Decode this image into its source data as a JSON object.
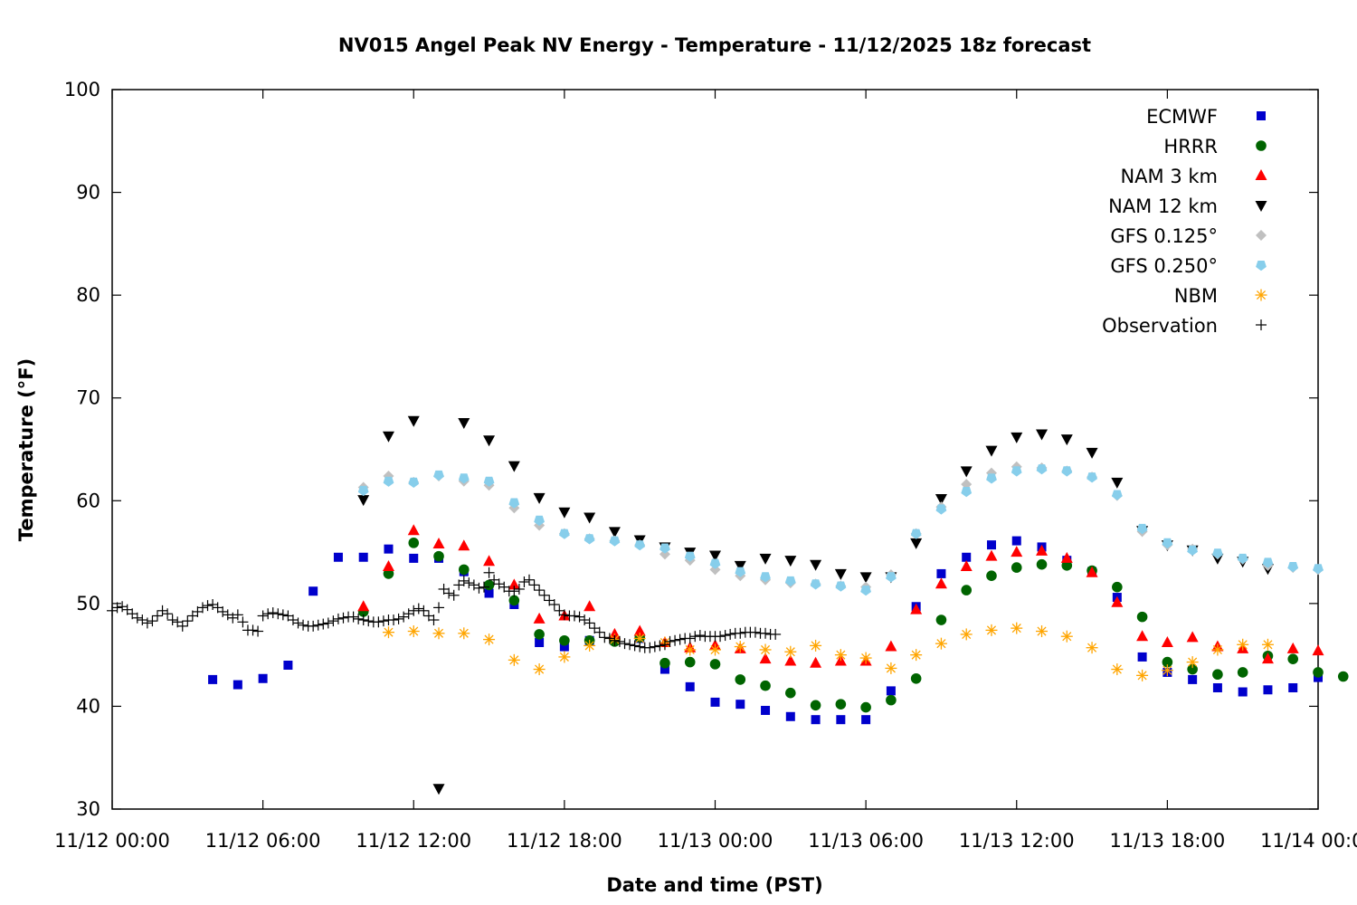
{
  "chart_data": {
    "type": "scatter",
    "title": "NV015 Angel Peak NV Energy - Temperature - 11/12/2025 18z forecast",
    "xlabel": "Date and time (PST)",
    "ylabel": "Temperature (°F)",
    "ylim": [
      30,
      100
    ],
    "yticks": [
      30,
      40,
      50,
      60,
      70,
      80,
      90,
      100
    ],
    "xlim_hours": [
      0,
      48
    ],
    "xticks": [
      {
        "hour": 0,
        "label": "11/12 00:00"
      },
      {
        "hour": 6,
        "label": "11/12 06:00"
      },
      {
        "hour": 12,
        "label": "11/12 12:00"
      },
      {
        "hour": 18,
        "label": "11/12 18:00"
      },
      {
        "hour": 24,
        "label": "11/13 00:00"
      },
      {
        "hour": 30,
        "label": "11/13 06:00"
      },
      {
        "hour": 36,
        "label": "11/13 12:00"
      },
      {
        "hour": 42,
        "label": "11/13 18:00"
      },
      {
        "hour": 48,
        "label": "11/14 00:00"
      }
    ],
    "x_unit": "hours since 11/12 00:00 PST",
    "grid": false,
    "legend_position": "top-right",
    "series": [
      {
        "name": "ECMWF",
        "marker": "square",
        "color": "#0000cc",
        "start_hour": 4,
        "values": [
          42.6,
          42.1,
          42.7,
          44.0,
          51.2,
          54.5,
          54.5,
          55.3,
          54.4,
          54.4,
          53.1,
          51.0,
          49.9,
          46.2,
          45.8,
          46.4,
          46.4,
          46.6,
          43.6,
          41.9,
          40.4,
          40.2,
          39.6,
          39.0,
          38.7,
          38.7,
          38.7,
          41.5,
          49.7,
          52.9,
          54.5,
          55.7,
          56.1,
          55.5,
          54.2,
          53.1,
          50.6,
          44.8,
          43.3,
          42.6,
          41.8,
          41.4,
          41.6,
          41.8,
          42.8
        ]
      },
      {
        "name": "HRRR",
        "marker": "circle",
        "color": "#006400",
        "start_hour": 10,
        "values": [
          49.2,
          52.9,
          55.9,
          54.6,
          53.3,
          51.8,
          50.3,
          47.0,
          46.4,
          46.4,
          46.3,
          46.7,
          44.2,
          44.3,
          44.1,
          42.6,
          42.0,
          41.3,
          40.1,
          40.2,
          39.9,
          40.6,
          42.7,
          48.4,
          51.3,
          52.7,
          53.5,
          53.8,
          53.7,
          53.2,
          51.6,
          48.7,
          44.3,
          43.6,
          43.1,
          43.3,
          44.9,
          44.6,
          43.3,
          42.9
        ]
      },
      {
        "name": "NAM 3 km",
        "marker": "triangle-up",
        "color": "#ff0000",
        "start_hour": 10,
        "values": [
          49.7,
          53.6,
          57.1,
          55.8,
          55.6,
          54.1,
          51.8,
          48.5,
          48.8,
          49.7,
          47.0,
          47.3,
          46.2,
          45.7,
          45.9,
          45.6,
          44.6,
          44.4,
          44.2,
          44.4,
          44.4,
          45.8,
          49.4,
          51.9,
          53.6,
          54.6,
          55.0,
          55.1,
          54.4,
          53.0,
          50.1,
          46.8,
          46.2,
          46.7,
          45.8,
          45.6,
          44.6,
          45.6,
          45.4
        ]
      },
      {
        "name": "NAM 12 km",
        "marker": "triangle-down",
        "color": "#000000",
        "start_hour": 10,
        "values": [
          60.1,
          66.3,
          67.8,
          32.0,
          67.6,
          65.9,
          63.4,
          60.3,
          58.9,
          58.4,
          57.0,
          56.2,
          55.5,
          55.0,
          54.7,
          53.7,
          54.4,
          54.2,
          53.8,
          52.9,
          52.6,
          52.6,
          55.9,
          60.2,
          62.9,
          64.9,
          66.2,
          66.5,
          66.0,
          64.7,
          61.8,
          57.1,
          55.7,
          55.2,
          54.4,
          54.1,
          53.4
        ]
      },
      {
        "name": "GFS 0.125°",
        "marker": "diamond",
        "color": "#c0c0c0",
        "start_hour": 10,
        "values": [
          61.3,
          62.4,
          61.8,
          62.4,
          61.9,
          61.5,
          59.3,
          57.6,
          56.8,
          56.3,
          56.1,
          55.7,
          54.8,
          54.2,
          53.3,
          52.7,
          52.3,
          52.0,
          51.9,
          51.7,
          51.6,
          52.8,
          56.8,
          59.4,
          61.6,
          62.7,
          63.3,
          63.2,
          62.9,
          62.3,
          60.5,
          57.0,
          55.7,
          55.3,
          54.8,
          54.3,
          53.7,
          53.5,
          53.3
        ]
      },
      {
        "name": "GFS 0.250°",
        "marker": "pentagon",
        "color": "#87ceeb",
        "start_hour": 10,
        "values": [
          61.0,
          61.9,
          61.8,
          62.5,
          62.2,
          61.9,
          59.8,
          58.1,
          56.8,
          56.3,
          56.1,
          55.7,
          55.4,
          54.6,
          53.9,
          53.1,
          52.6,
          52.2,
          51.9,
          51.7,
          51.3,
          52.6,
          56.8,
          59.2,
          60.9,
          62.2,
          62.9,
          63.1,
          62.9,
          62.3,
          60.6,
          57.3,
          55.9,
          55.2,
          54.9,
          54.4,
          54.0,
          53.6,
          53.4
        ]
      },
      {
        "name": "NBM",
        "marker": "star",
        "color": "#ffa500",
        "start_hour": 11,
        "values": [
          47.2,
          47.3,
          47.1,
          47.1,
          46.5,
          44.5,
          43.6,
          44.8,
          45.9,
          46.5,
          46.6,
          46.2,
          45.5,
          45.5,
          45.8,
          45.5,
          45.3,
          45.9,
          45.0,
          44.7,
          43.7,
          45.0,
          46.1,
          47.0,
          47.4,
          47.6,
          47.3,
          46.8,
          45.7,
          43.6,
          43.0,
          43.5,
          44.3,
          45.5,
          46.0,
          46.0
        ]
      },
      {
        "name": "Observation",
        "marker": "plus",
        "color": "#000000",
        "start_hour": 0,
        "step_hours": 0.2,
        "values": [
          49.3,
          49.6,
          49.7,
          49.4,
          49.0,
          48.6,
          48.4,
          48.1,
          48.3,
          48.8,
          49.3,
          49.0,
          48.4,
          48.2,
          47.8,
          48.3,
          48.8,
          49.2,
          49.6,
          49.8,
          49.9,
          49.6,
          49.2,
          48.9,
          48.6,
          48.9,
          48.2,
          47.4,
          47.4,
          47.3,
          48.8,
          49.0,
          49.1,
          49.0,
          48.9,
          48.8,
          48.4,
          48.1,
          47.9,
          47.8,
          47.8,
          47.9,
          48.0,
          48.1,
          48.3,
          48.5,
          48.6,
          48.7,
          48.7,
          48.5,
          48.4,
          48.3,
          48.2,
          48.2,
          48.3,
          48.4,
          48.4,
          48.5,
          48.7,
          49.0,
          49.3,
          49.5,
          49.3,
          48.8,
          48.4,
          49.6,
          51.4,
          51.0,
          50.8,
          51.8,
          52.2,
          52.0,
          51.8,
          51.5,
          51.6,
          53.0,
          52.3,
          51.9,
          51.6,
          51.2,
          51.2,
          51.4,
          52.1,
          52.3,
          51.8,
          51.3,
          50.8,
          50.3,
          49.9,
          49.3,
          48.9,
          48.8,
          48.8,
          48.7,
          48.4,
          48.1,
          47.6,
          47.2,
          46.7,
          46.6,
          46.4,
          46.3,
          46.1,
          46.0,
          45.9,
          45.8,
          45.7,
          45.7,
          45.8,
          45.9,
          46.0,
          46.3,
          46.4,
          46.5,
          46.6,
          46.6,
          46.8,
          46.9,
          46.8,
          46.8,
          46.8,
          46.8,
          46.9,
          47.0,
          47.1,
          47.1,
          47.2,
          47.2,
          47.2,
          47.1,
          47.1,
          47.0,
          47.0
        ]
      }
    ]
  }
}
